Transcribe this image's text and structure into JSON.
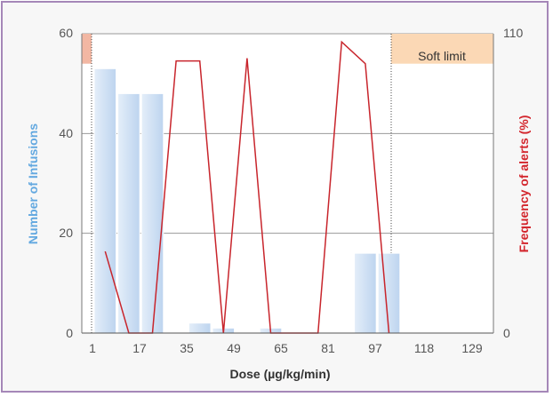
{
  "chart_data": {
    "type": "bar+line",
    "x_ticks": [
      "1",
      "17",
      "35",
      "49",
      "65",
      "81",
      "97",
      "118",
      "129"
    ],
    "xlabel": "Dose (µg/kg/min)",
    "ylabel_left": "Number of Infusions",
    "ylabel_right": "Frequency of alerts (%)",
    "ylim_left": [
      0,
      60
    ],
    "ylim_right": [
      0,
      110
    ],
    "left_ticks": [
      "0",
      "20",
      "40",
      "60"
    ],
    "right_ticks": [
      "0",
      "110"
    ],
    "grid": true,
    "bars": {
      "name": "Number of Infusions",
      "color": "#bdd4ef",
      "values": [
        53,
        48,
        48,
        0,
        2,
        1,
        0,
        1,
        0,
        0,
        0,
        16,
        16,
        0
      ]
    },
    "line": {
      "name": "Frequency of alerts (%)",
      "color": "#c8252c",
      "points": [
        {
          "bin": 0.5,
          "value": 30
        },
        {
          "bin": 1.5,
          "value": 0
        },
        {
          "bin": 2.5,
          "value": 0
        },
        {
          "bin": 3.5,
          "value": 100
        },
        {
          "bin": 4.5,
          "value": 100
        },
        {
          "bin": 5.5,
          "value": 0
        },
        {
          "bin": 6.5,
          "value": 101
        },
        {
          "bin": 7.5,
          "value": 0
        },
        {
          "bin": 8.5,
          "value": 0
        },
        {
          "bin": 9.5,
          "value": 0
        },
        {
          "bin": 10.5,
          "value": 107
        },
        {
          "bin": 11.5,
          "value": 99
        },
        {
          "bin": 12.5,
          "value": 0
        }
      ]
    },
    "soft_limit": {
      "label": "Soft limit",
      "fill_color": "#fbd8b5",
      "lower_fill_color": "#f2b7a3"
    }
  }
}
